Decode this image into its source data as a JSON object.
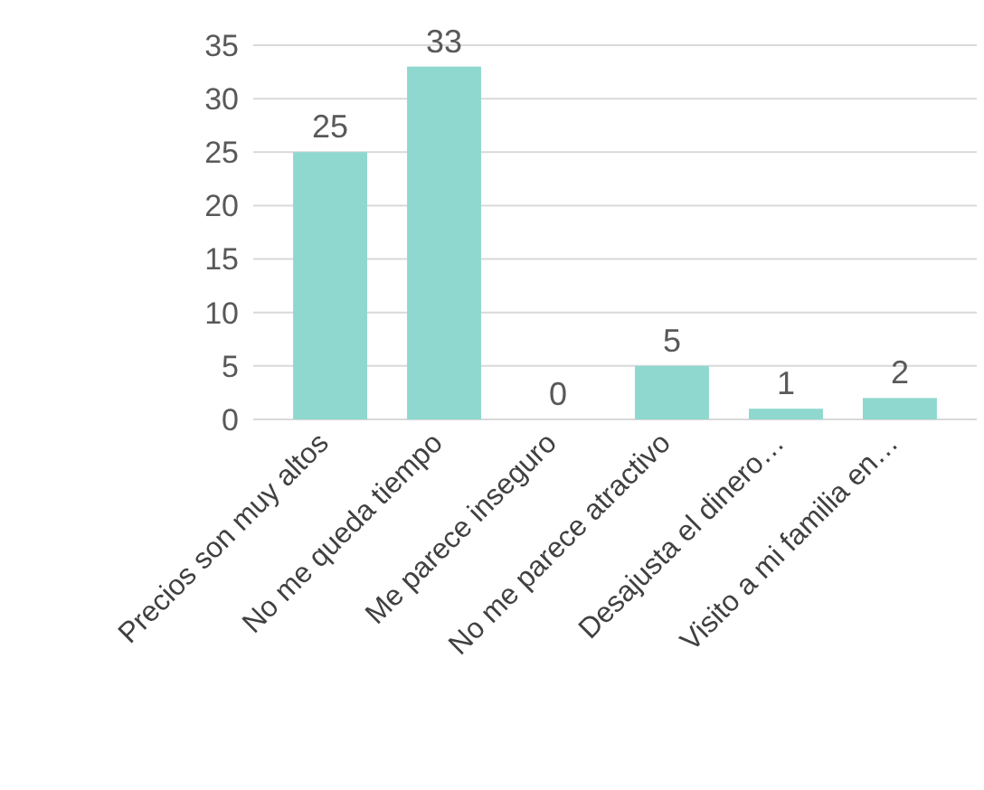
{
  "chart_data": {
    "type": "bar",
    "categories": [
      "Precios son muy altos",
      "No me queda tiempo",
      "Me parece inseguro",
      "No me parece atractivo",
      "Desajusta el dinero…",
      "Visito a mi familia en…"
    ],
    "values": [
      25,
      33,
      0,
      5,
      1,
      2
    ],
    "color": "#8fd8cf",
    "ylim": [
      0,
      35
    ],
    "yticks": [
      0,
      5,
      10,
      15,
      20,
      25,
      30,
      35
    ],
    "grid": "y",
    "data_labels": true
  }
}
